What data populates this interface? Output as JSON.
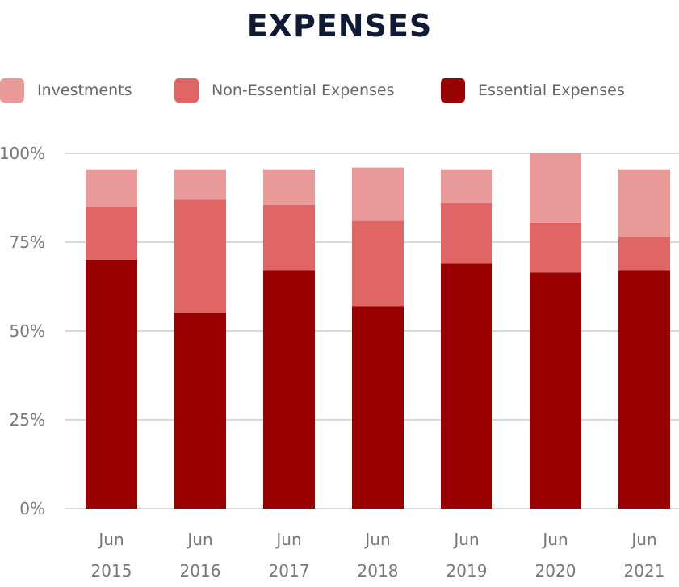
{
  "chart_data": {
    "type": "bar",
    "stacked": true,
    "title": "EXPENSES",
    "categories": [
      [
        "Jun",
        "2015"
      ],
      [
        "Jun",
        "2016"
      ],
      [
        "Jun",
        "2017"
      ],
      [
        "Jun",
        "2018"
      ],
      [
        "Jun",
        "2019"
      ],
      [
        "Jun",
        "2020"
      ],
      [
        "Jun",
        "2021"
      ]
    ],
    "series": [
      {
        "name": "Essential Expenses",
        "color": "#990000",
        "values": [
          70,
          55,
          67,
          57,
          69,
          66.5,
          67
        ]
      },
      {
        "name": "Non-Essential Expenses",
        "color": "#e06666",
        "values": [
          15,
          32,
          18.5,
          24,
          17,
          14,
          9.5
        ]
      },
      {
        "name": "Investments",
        "color": "#ea9999",
        "values": [
          10.5,
          8.5,
          10,
          15,
          9.5,
          19.5,
          19
        ]
      }
    ],
    "legend_order": [
      "Investments",
      "Non-Essential Expenses",
      "Essential Expenses"
    ],
    "legend_position": "top",
    "ylim": [
      0,
      100
    ],
    "yticks": [
      0,
      25,
      50,
      75,
      100
    ],
    "ytick_labels": [
      "0%",
      "25%",
      "50%",
      "75%",
      "100%"
    ],
    "grid": true,
    "gridline_color": "#cccccc",
    "title_color": "#0f1a35",
    "xlabel": "",
    "ylabel": ""
  }
}
